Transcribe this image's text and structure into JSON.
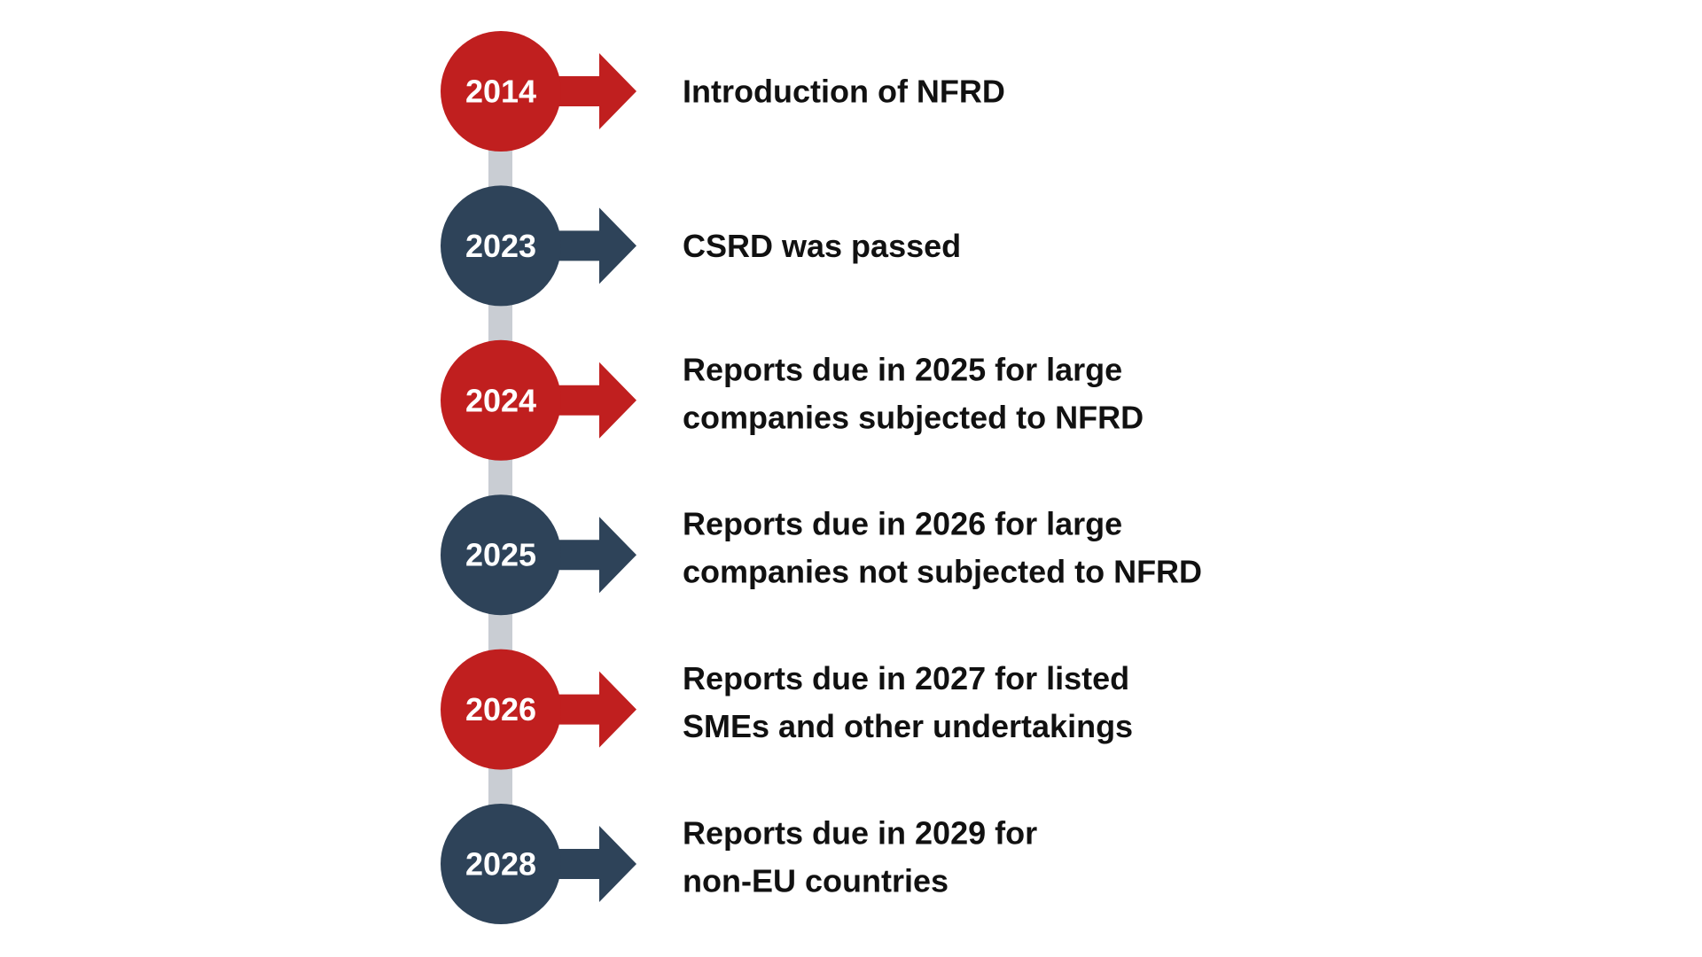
{
  "timeline": {
    "items": [
      {
        "year": "2014",
        "color": "#c01f1f",
        "lines": [
          "Introduction of NFRD"
        ]
      },
      {
        "year": "2023",
        "color": "#2e4359",
        "lines": [
          "CSRD was passed"
        ]
      },
      {
        "year": "2024",
        "color": "#c01f1f",
        "lines": [
          "Reports due in 2025 for large",
          "companies subjected to NFRD"
        ]
      },
      {
        "year": "2025",
        "color": "#2e4359",
        "lines": [
          "Reports due in 2026 for large",
          "companies not subjected to NFRD"
        ]
      },
      {
        "year": "2026",
        "color": "#c01f1f",
        "lines": [
          "Reports due in 2027 for listed",
          "SMEs and other undertakings"
        ]
      },
      {
        "year": "2028",
        "color": "#2e4359",
        "lines": [
          "Reports due in 2029 for",
          "non-EU countries"
        ]
      }
    ]
  }
}
